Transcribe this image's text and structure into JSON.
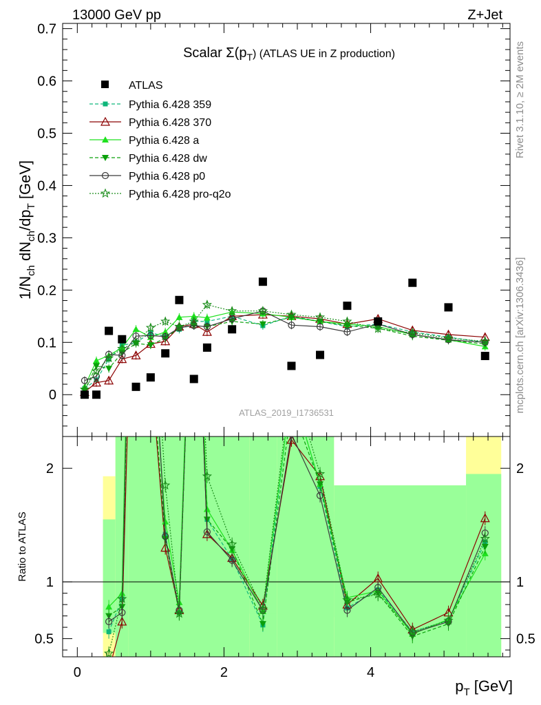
{
  "header": {
    "left": "13000 GeV pp",
    "right": "Z+Jet"
  },
  "side": {
    "rivet": "Rivet 3.1.10, ≥ 2M events",
    "url": "mcplots.cern.ch [arXiv:1306.3436]"
  },
  "analysis": "ATLAS_2019_I1736531",
  "title": {
    "main": "Scalar Σ(p",
    "sub": "T",
    "tail": ") (ATLAS UE in Z production)"
  },
  "ylabel": {
    "p1": "1/N",
    "s1": "ch",
    "p2": " dN",
    "s2": "ch",
    "p3": "/dp",
    "s3": "T",
    "p4": " [GeV]"
  },
  "xlabel": {
    "p1": "p",
    "s1": "T",
    "p2": " [GeV]"
  },
  "ratio_label": "Ratio to ATLAS",
  "colors": {
    "data": "#000000",
    "p359": "#0eb67a",
    "p370": "#8b0000",
    "a": "#1ee11e",
    "dw": "#0aa00a",
    "p0": "#3a3a3a",
    "pq2o": "#1a8c1a",
    "band_inner": "#99ff99",
    "band_outer": "#ffff99"
  },
  "chart_data": {
    "type": "line",
    "x": [
      0.1,
      0.26,
      0.43,
      0.61,
      0.8,
      1.0,
      1.2,
      1.39,
      1.59,
      1.77,
      2.11,
      2.53,
      2.92,
      3.31,
      3.68,
      4.1,
      4.57,
      5.06,
      5.56
    ],
    "xlim": [
      -0.2,
      5.9
    ],
    "ylim": [
      -0.08,
      0.71
    ],
    "xticks": [
      0,
      2,
      4
    ],
    "yticks": [
      0,
      0.1,
      0.2,
      0.3,
      0.4,
      0.5,
      0.6,
      0.7
    ],
    "ratio_ylim": [
      0.34,
      2.28
    ],
    "ratio_yticks": [
      0.5,
      1,
      2
    ],
    "ratio_reference": 1,
    "data_series": {
      "name": "ATLAS",
      "values": [
        0.0,
        0.0,
        0.122,
        0.106,
        0.015,
        0.033,
        0.079,
        0.181,
        0.03,
        0.09,
        0.125,
        0.216,
        0.055,
        0.076,
        0.17,
        0.14,
        0.214,
        0.167,
        0.074
      ]
    },
    "series": [
      {
        "name": "Pythia 6.428 359",
        "key": "p359",
        "style": "dashed",
        "marker": "square",
        "values": [
          0.012,
          0.028,
          0.068,
          0.094,
          0.1,
          0.118,
          0.112,
          0.125,
          0.14,
          0.14,
          0.15,
          0.132,
          0.15,
          0.14,
          0.13,
          0.135,
          0.12,
          0.11,
          0.1
        ]
      },
      {
        "name": "Pythia 6.428 370",
        "key": "p370",
        "style": "solid",
        "marker": "triangle-open",
        "values": [
          0.005,
          0.023,
          0.027,
          0.068,
          0.075,
          0.097,
          0.102,
          0.13,
          0.135,
          0.12,
          0.15,
          0.153,
          0.15,
          0.145,
          0.135,
          0.145,
          0.123,
          0.115,
          0.11
        ]
      },
      {
        "name": "Pythia 6.428 a",
        "key": "a",
        "style": "solid",
        "marker": "triangle",
        "values": [
          0.015,
          0.065,
          0.075,
          0.09,
          0.125,
          0.11,
          0.12,
          0.148,
          0.15,
          0.147,
          0.158,
          0.155,
          0.148,
          0.14,
          0.135,
          0.13,
          0.115,
          0.105,
          0.092
        ]
      },
      {
        "name": "Pythia 6.428 dw",
        "key": "dw",
        "style": "dashed",
        "marker": "triangle-down",
        "values": [
          0.008,
          0.055,
          0.05,
          0.08,
          0.098,
          0.095,
          0.108,
          0.128,
          0.132,
          0.13,
          0.14,
          0.135,
          0.148,
          0.14,
          0.132,
          0.127,
          0.112,
          0.104,
          0.097
        ]
      },
      {
        "name": "Pythia 6.428 p0",
        "key": "p0",
        "style": "solid",
        "marker": "circle-open",
        "values": [
          0.027,
          0.035,
          0.077,
          0.075,
          0.112,
          0.113,
          0.111,
          0.128,
          0.132,
          0.13,
          0.145,
          0.16,
          0.133,
          0.13,
          0.12,
          0.135,
          0.115,
          0.105,
          0.1
        ]
      },
      {
        "name": "Pythia 6.428 pro-q2o",
        "key": "pq2o",
        "style": "dotted",
        "marker": "star",
        "values": [
          0.01,
          0.045,
          0.07,
          0.088,
          0.1,
          0.128,
          0.14,
          0.13,
          0.14,
          0.172,
          0.16,
          0.16,
          0.153,
          0.148,
          0.14,
          0.126,
          0.118,
          0.108,
          0.102
        ]
      }
    ],
    "ratio_series": [
      {
        "key": "p359",
        "values": [
          null,
          null,
          0.56,
          0.85,
          6.5,
          3.6,
          1.42,
          0.73,
          4.6,
          1.55,
          1.2,
          0.62,
          2.73,
          1.84,
          0.77,
          0.93,
          0.56,
          0.66,
          1.35
        ]
      },
      {
        "key": "p370",
        "values": [
          null,
          null,
          0.22,
          0.65,
          5.0,
          2.9,
          1.3,
          0.75,
          4.5,
          1.42,
          1.21,
          0.79,
          2.25,
          1.93,
          0.8,
          1.03,
          0.58,
          0.73,
          1.56
        ]
      },
      {
        "key": "a",
        "values": [
          null,
          null,
          0.78,
          0.9,
          6.6,
          3.3,
          1.53,
          0.82,
          4.6,
          1.64,
          1.28,
          0.74,
          2.7,
          1.86,
          0.86,
          0.92,
          0.54,
          0.67,
          1.25
        ]
      },
      {
        "key": "dw",
        "values": [
          null,
          null,
          0.7,
          0.78,
          5.9,
          3.0,
          1.38,
          0.72,
          4.4,
          1.55,
          1.29,
          0.63,
          2.55,
          1.86,
          0.82,
          0.9,
          0.52,
          0.63,
          1.31
        ]
      },
      {
        "key": "p0",
        "values": [
          null,
          null,
          0.65,
          0.73,
          6.4,
          3.6,
          1.4,
          0.75,
          4.4,
          1.44,
          1.19,
          0.75,
          2.3,
          1.76,
          0.75,
          0.95,
          0.55,
          0.65,
          1.43
        ]
      },
      {
        "key": "pq2o",
        "values": [
          null,
          null,
          0.37,
          0.85,
          6.2,
          3.9,
          1.85,
          0.72,
          4.5,
          1.93,
          1.33,
          0.76,
          2.8,
          1.95,
          0.84,
          0.89,
          0.56,
          0.66,
          1.38
        ]
      }
    ],
    "ratio_bands": {
      "edges": [
        0.35,
        0.52,
        0.7,
        2.35,
        2.72,
        3.5,
        5.3,
        5.78
      ],
      "inner": [
        [
          0.55,
          1.55
        ],
        [
          0.34,
          2.28
        ],
        [
          0.34,
          2.28
        ],
        [
          0.34,
          2.28
        ],
        [
          0.34,
          2.28
        ],
        [
          0.34,
          1.62
        ],
        [
          0.34,
          1.95
        ]
      ],
      "outer": [
        [
          0.34,
          1.93
        ],
        [
          0.34,
          2.28
        ],
        [
          0.34,
          2.28
        ],
        [
          0.34,
          2.28
        ],
        [
          0.34,
          2.28
        ],
        [
          0.34,
          1.85
        ],
        [
          0.34,
          2.28
        ]
      ],
      "outer_gap": [
        null,
        null,
        null,
        [
          0.72,
          1.72
        ],
        null,
        [
          0.69,
          1.85
        ],
        null
      ]
    }
  }
}
